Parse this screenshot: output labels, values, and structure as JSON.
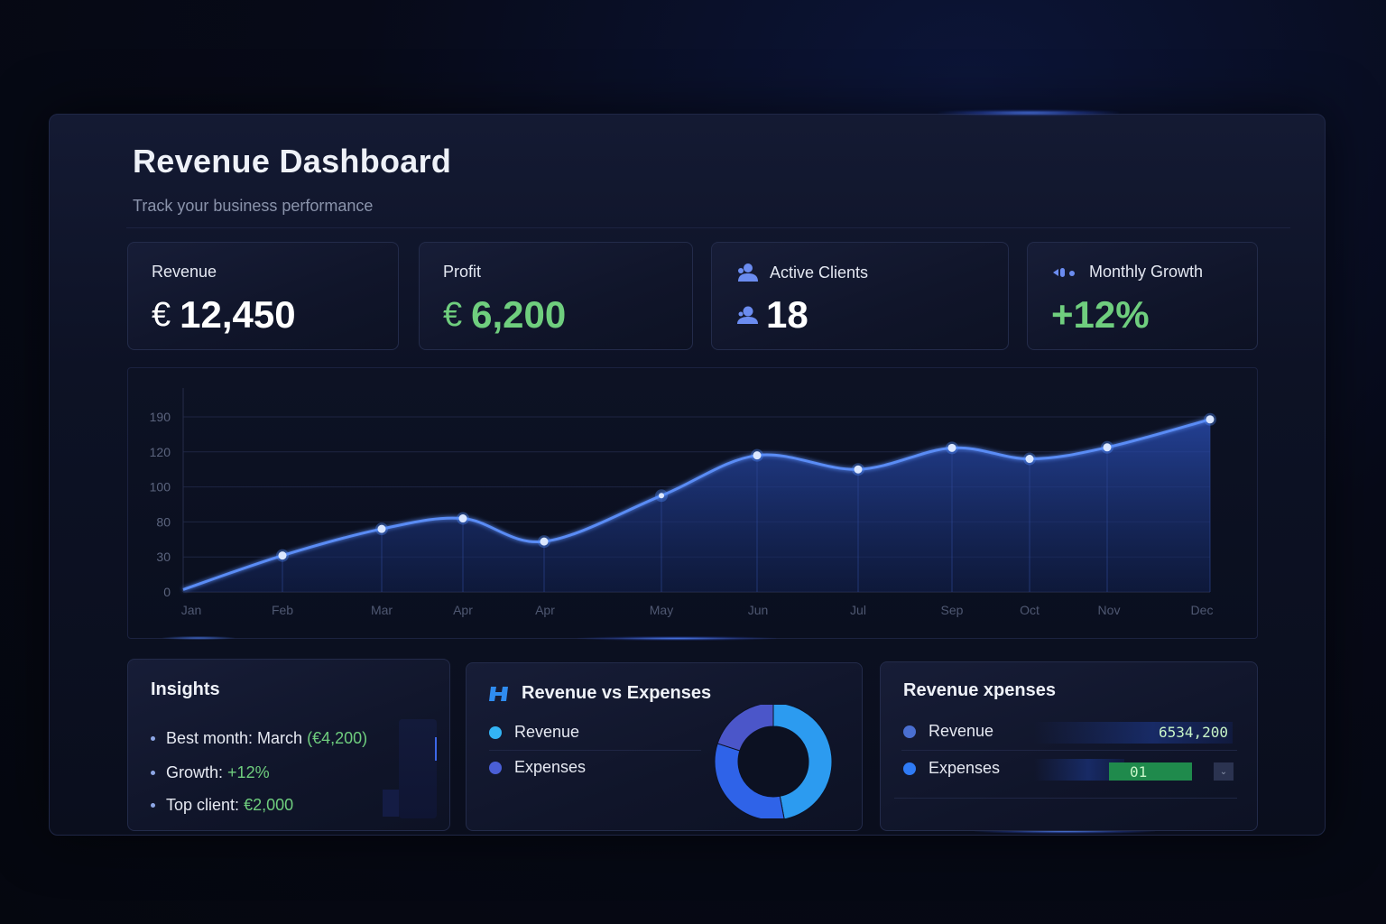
{
  "header": {
    "title": "Revenue Dashboard",
    "subtitle": "Track your business performance"
  },
  "kpis": [
    {
      "label": "Revenue",
      "currency": "€",
      "value": "12,450",
      "value_color": "#ffffff"
    },
    {
      "label": "Profit",
      "currency": "€",
      "value": "6,200",
      "value_color": "#6fce7e"
    },
    {
      "label": "Active Clients",
      "icon": "users-icon",
      "value_icon": "user-icon",
      "value": "18",
      "value_color": "#ffffff"
    },
    {
      "label": "Monthly Growth",
      "icon": "growth-bars-icon",
      "value": "+12%",
      "value_color": "#6fce7e"
    }
  ],
  "chart_data": {
    "type": "area",
    "title": "",
    "xlabel": "",
    "ylabel": "",
    "categories": [
      "Jan",
      "Feb",
      "Mar",
      "Apr",
      "Apr",
      "May",
      "Jun",
      "Jul",
      "Sep",
      "Oct",
      "Nov",
      "Dec"
    ],
    "y_tick_labels": [
      "0",
      "30",
      "80",
      "100",
      "120",
      "190"
    ],
    "series": [
      {
        "name": "Revenue",
        "color": "#4f7ff0",
        "values": [
          2,
          32,
          70,
          82,
          52,
          95,
          118,
          110,
          128,
          116,
          129,
          185
        ]
      }
    ],
    "ylim": [
      0,
      190
    ],
    "grid": true,
    "legend": "none"
  },
  "insights": {
    "title": "Insights",
    "items": [
      {
        "label": "Best month: March",
        "value": "(€4,200)"
      },
      {
        "label": "Growth:",
        "value": "+12%"
      },
      {
        "label": "Top client:",
        "value": "€2,000"
      }
    ]
  },
  "rev_vs_exp": {
    "title": "Revenue vs Expenses",
    "icon": "chart-logo-icon",
    "legend": [
      {
        "label": "Revenue",
        "color": "#33b4f5"
      },
      {
        "label": "Expenses",
        "color": "#4a5fd6"
      }
    ],
    "donut": [
      {
        "name": "Revenue",
        "percent": 47,
        "color": "#2c9bf0"
      },
      {
        "name": "Revenue-bottom",
        "percent": 33,
        "color": "#2f63e8"
      },
      {
        "name": "Expenses",
        "percent": 20,
        "color": "#4b56c9"
      }
    ]
  },
  "rev_exp_panel": {
    "title": "Revenue xpenses",
    "rows": [
      {
        "label": "Revenue",
        "dot_color": "#4a6fd1",
        "value": "6534,200"
      },
      {
        "label": "Expenses",
        "dot_color": "#2f7bf5",
        "value": "01"
      }
    ]
  }
}
